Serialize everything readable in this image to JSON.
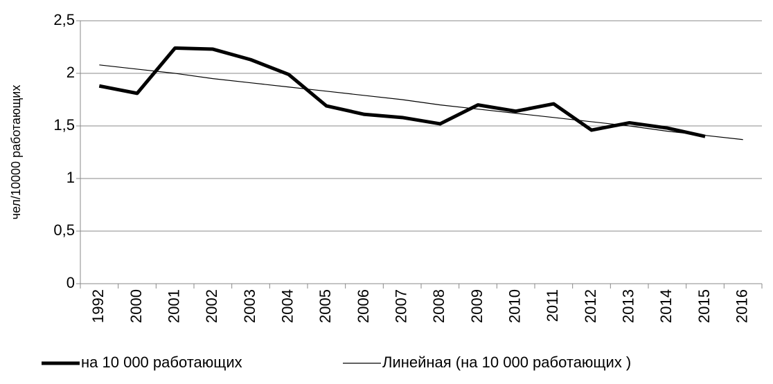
{
  "chart_data": {
    "type": "line",
    "ylabel": "чел/10000 работающих",
    "categories": [
      "1992",
      "2000",
      "2001",
      "2002",
      "2003",
      "2004",
      "2005",
      "2006",
      "2007",
      "2008",
      "2009",
      "2010",
      "2011",
      "2012",
      "2013",
      "2014",
      "2015",
      "2016"
    ],
    "series": [
      {
        "name": "на 10 000 работающих",
        "color": "#000000",
        "width": 5,
        "values": [
          1.88,
          1.81,
          2.24,
          2.23,
          2.13,
          1.99,
          1.69,
          1.61,
          1.58,
          1.52,
          1.7,
          1.64,
          1.71,
          1.46,
          1.53,
          1.48,
          1.4,
          null
        ]
      },
      {
        "name": "Линейная (на 10 000 работающих )",
        "color": "#000000",
        "width": 1.2,
        "values": [
          2.08,
          2.04,
          2.0,
          1.95,
          1.91,
          1.87,
          1.83,
          1.79,
          1.75,
          1.7,
          1.66,
          1.62,
          1.58,
          1.54,
          1.5,
          1.45,
          1.41,
          1.37
        ]
      }
    ],
    "ylim": [
      0,
      2.5
    ],
    "yticks": [
      0,
      {
        "value": 0.5,
        "label": "0,5"
      },
      1,
      {
        "value": 1.5,
        "label": "1,5"
      },
      2,
      {
        "value": 2.5,
        "label": "2,5"
      }
    ],
    "grid": true,
    "legend": "bottom"
  }
}
